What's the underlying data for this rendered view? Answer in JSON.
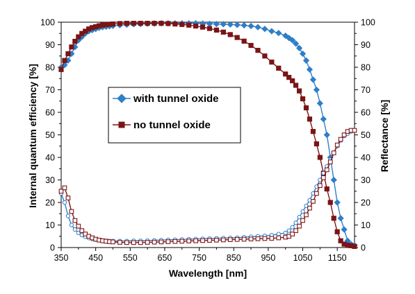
{
  "chart_data": {
    "type": "line",
    "title": "",
    "xlabel": "Wavelength [nm]",
    "ylabel": "Internal quantum efficiency [%]",
    "y2label": "Reflectance [%]",
    "xlim": [
      350,
      1200
    ],
    "ylim": [
      0,
      100
    ],
    "y2lim": [
      0,
      100
    ],
    "x_ticks": [
      350,
      450,
      550,
      650,
      750,
      850,
      950,
      1050,
      1150
    ],
    "y_ticks": [
      0,
      10,
      20,
      30,
      40,
      50,
      60,
      70,
      80,
      90,
      100
    ],
    "grid": false,
    "legend": {
      "placement": "center-left",
      "entries": [
        "with tunnel oxide",
        "no tunnel oxide"
      ]
    },
    "colors": {
      "with_tunnel_oxide": "#2E7EC8",
      "no_tunnel_oxide": "#7B1416"
    },
    "series": [
      {
        "name": "with tunnel oxide",
        "kind": "IQE",
        "axis": "left",
        "marker": "diamond",
        "x": [
          350,
          360,
          370,
          380,
          390,
          400,
          410,
          420,
          430,
          440,
          450,
          460,
          470,
          480,
          490,
          500,
          520,
          540,
          560,
          580,
          600,
          620,
          640,
          660,
          680,
          700,
          720,
          740,
          760,
          780,
          800,
          820,
          840,
          860,
          880,
          900,
          920,
          940,
          960,
          980,
          1000,
          1010,
          1020,
          1030,
          1040,
          1050,
          1060,
          1070,
          1080,
          1090,
          1100,
          1110,
          1120,
          1130,
          1140,
          1150,
          1160,
          1170,
          1180,
          1190,
          1200
        ],
        "values": [
          80,
          81,
          83,
          86,
          89,
          92,
          93.5,
          95,
          96,
          96.5,
          97,
          97.5,
          97.8,
          98,
          98.2,
          98.4,
          98.7,
          98.9,
          99.1,
          99.2,
          99.3,
          99.4,
          99.5,
          99.5,
          99.5,
          99.5,
          99.5,
          99.5,
          99.4,
          99.3,
          99.2,
          99.1,
          99,
          98.8,
          98.6,
          98.3,
          97.8,
          97,
          96,
          95.2,
          94,
          93,
          92,
          90.5,
          88.5,
          86,
          83,
          79,
          74.5,
          70,
          64,
          57,
          50,
          40,
          30,
          20,
          13,
          8,
          3,
          1.5,
          1
        ]
      },
      {
        "name": "no tunnel oxide",
        "kind": "IQE",
        "axis": "left",
        "marker": "square",
        "x": [
          350,
          360,
          370,
          380,
          390,
          400,
          410,
          420,
          430,
          440,
          450,
          460,
          470,
          480,
          490,
          500,
          520,
          540,
          560,
          580,
          600,
          620,
          640,
          660,
          680,
          700,
          720,
          740,
          760,
          780,
          800,
          820,
          840,
          860,
          880,
          900,
          920,
          940,
          960,
          980,
          1000,
          1010,
          1020,
          1030,
          1040,
          1050,
          1060,
          1070,
          1080,
          1090,
          1100,
          1110,
          1120,
          1130,
          1140,
          1150,
          1160,
          1170,
          1180,
          1190,
          1200
        ],
        "values": [
          79,
          83,
          86,
          89,
          91.5,
          93.5,
          95,
          96,
          97,
          97.6,
          98,
          98.4,
          98.7,
          98.9,
          99.1,
          99.2,
          99.4,
          99.5,
          99.5,
          99.5,
          99.5,
          99.5,
          99.5,
          99.4,
          99.2,
          99,
          98.7,
          98.3,
          97.8,
          97.2,
          96.5,
          95.6,
          94.5,
          93.2,
          91.6,
          89.7,
          87.5,
          85,
          82.3,
          79.6,
          77,
          75.5,
          74,
          72,
          69.5,
          66,
          62,
          57,
          51.5,
          46,
          40,
          33,
          26,
          20,
          13,
          7,
          3,
          1.5,
          1,
          0.8,
          0.5
        ]
      },
      {
        "name": "with tunnel oxide",
        "kind": "Reflectance",
        "axis": "right",
        "marker": "open-circle",
        "x": [
          350,
          360,
          370,
          380,
          390,
          400,
          410,
          420,
          430,
          440,
          450,
          460,
          470,
          480,
          490,
          500,
          520,
          540,
          560,
          580,
          600,
          620,
          640,
          660,
          680,
          700,
          720,
          740,
          760,
          780,
          800,
          820,
          840,
          860,
          880,
          900,
          920,
          940,
          960,
          980,
          1000,
          1010,
          1020,
          1030,
          1040,
          1050,
          1060,
          1070,
          1080,
          1090,
          1100,
          1110,
          1120,
          1130,
          1140,
          1150,
          1160,
          1170,
          1180,
          1190,
          1200
        ],
        "values": [
          24,
          20,
          14,
          10,
          8,
          6.5,
          5.5,
          4.8,
          4.2,
          3.8,
          3.5,
          3.3,
          3.1,
          3,
          2.9,
          2.9,
          2.9,
          2.9,
          3,
          3,
          3.1,
          3.2,
          3.3,
          3.4,
          3.5,
          3.6,
          3.7,
          3.8,
          3.9,
          4,
          4.1,
          4.2,
          4.3,
          4.4,
          4.6,
          4.8,
          5,
          5.2,
          5.5,
          6,
          6.5,
          7.5,
          9,
          11,
          13.5,
          16,
          18.5,
          21,
          24,
          27,
          30,
          33,
          36,
          39,
          42,
          45,
          47.5,
          49.5,
          50.5,
          51.5,
          52
        ]
      },
      {
        "name": "no tunnel oxide",
        "kind": "Reflectance",
        "axis": "right",
        "marker": "open-square",
        "x": [
          350,
          360,
          370,
          380,
          390,
          400,
          410,
          420,
          430,
          440,
          450,
          460,
          470,
          480,
          490,
          500,
          520,
          540,
          560,
          580,
          600,
          620,
          640,
          660,
          680,
          700,
          720,
          740,
          760,
          780,
          800,
          820,
          840,
          860,
          880,
          900,
          920,
          940,
          960,
          980,
          1000,
          1010,
          1020,
          1030,
          1040,
          1050,
          1060,
          1070,
          1080,
          1090,
          1100,
          1110,
          1120,
          1130,
          1140,
          1150,
          1160,
          1170,
          1180,
          1190,
          1200
        ],
        "values": [
          25,
          26.5,
          22,
          16,
          12,
          9.5,
          7.5,
          6,
          5,
          4.3,
          3.7,
          3.3,
          3,
          2.8,
          2.6,
          2.5,
          2.3,
          2.2,
          2.2,
          2.2,
          2.3,
          2.4,
          2.5,
          2.6,
          2.7,
          2.8,
          2.9,
          3,
          3.1,
          3.2,
          3.3,
          3.4,
          3.5,
          3.6,
          3.7,
          3.8,
          3.9,
          4,
          4.1,
          4.3,
          4.6,
          5,
          6,
          7.5,
          9.5,
          12,
          14.5,
          17.5,
          20.5,
          24,
          27.5,
          31,
          34.5,
          38,
          42,
          45.5,
          48,
          50,
          51.5,
          52,
          52
        ]
      }
    ]
  }
}
